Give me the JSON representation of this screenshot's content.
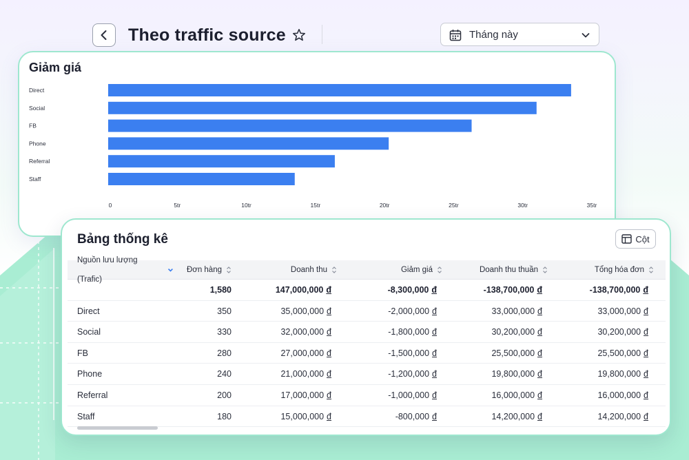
{
  "header": {
    "title": "Theo traffic source",
    "date_range": "Tháng này"
  },
  "chart": {
    "title": "Giảm giá"
  },
  "chart_data": {
    "type": "bar",
    "orientation": "horizontal",
    "title": "Giảm giá",
    "categories": [
      "Direct",
      "Social",
      "FB",
      "Phone",
      "Referral",
      "Staff"
    ],
    "values": [
      33.5,
      31,
      26.3,
      20.3,
      16.4,
      13.5
    ],
    "xlim": [
      0,
      35
    ],
    "x_ticks": [
      "0",
      "5tr",
      "10tr",
      "15tr",
      "20tr",
      "25tr",
      "30tr",
      "35tr"
    ],
    "bar_color": "#3b7ff0",
    "grid": false
  },
  "table": {
    "title": "Bảng thống kê",
    "columns_button": "Cột",
    "headers": [
      "Nguồn lưu lượng (Trafic)",
      "Đơn hàng",
      "Doanh thu",
      "Giảm giá",
      "Doanh thu thuần",
      "Tổng hóa đơn"
    ],
    "currency": "đ",
    "total": [
      "",
      "1,580",
      "147,000,000",
      "-8,300,000",
      "-138,700,000",
      "-138,700,000"
    ],
    "rows": [
      [
        "Direct",
        "350",
        "35,000,000",
        "-2,000,000",
        "33,000,000",
        "33,000,000"
      ],
      [
        "Social",
        "330",
        "32,000,000",
        "-1,800,000",
        "30,200,000",
        "30,200,000"
      ],
      [
        "FB",
        "280",
        "27,000,000",
        "-1,500,000",
        "25,500,000",
        "25,500,000"
      ],
      [
        "Phone",
        "240",
        "21,000,000",
        "-1,200,000",
        "19,800,000",
        "19,800,000"
      ],
      [
        "Referral",
        "200",
        "17,000,000",
        "-1,000,000",
        "16,000,000",
        "16,000,000"
      ],
      [
        "Staff",
        "180",
        "15,000,000",
        "-800,000",
        "14,200,000",
        "14,200,000"
      ]
    ]
  },
  "colors": {
    "accent": "#3b7ff0",
    "card_border": "#9ee7cf",
    "background_hill": "#a7ecd2"
  }
}
